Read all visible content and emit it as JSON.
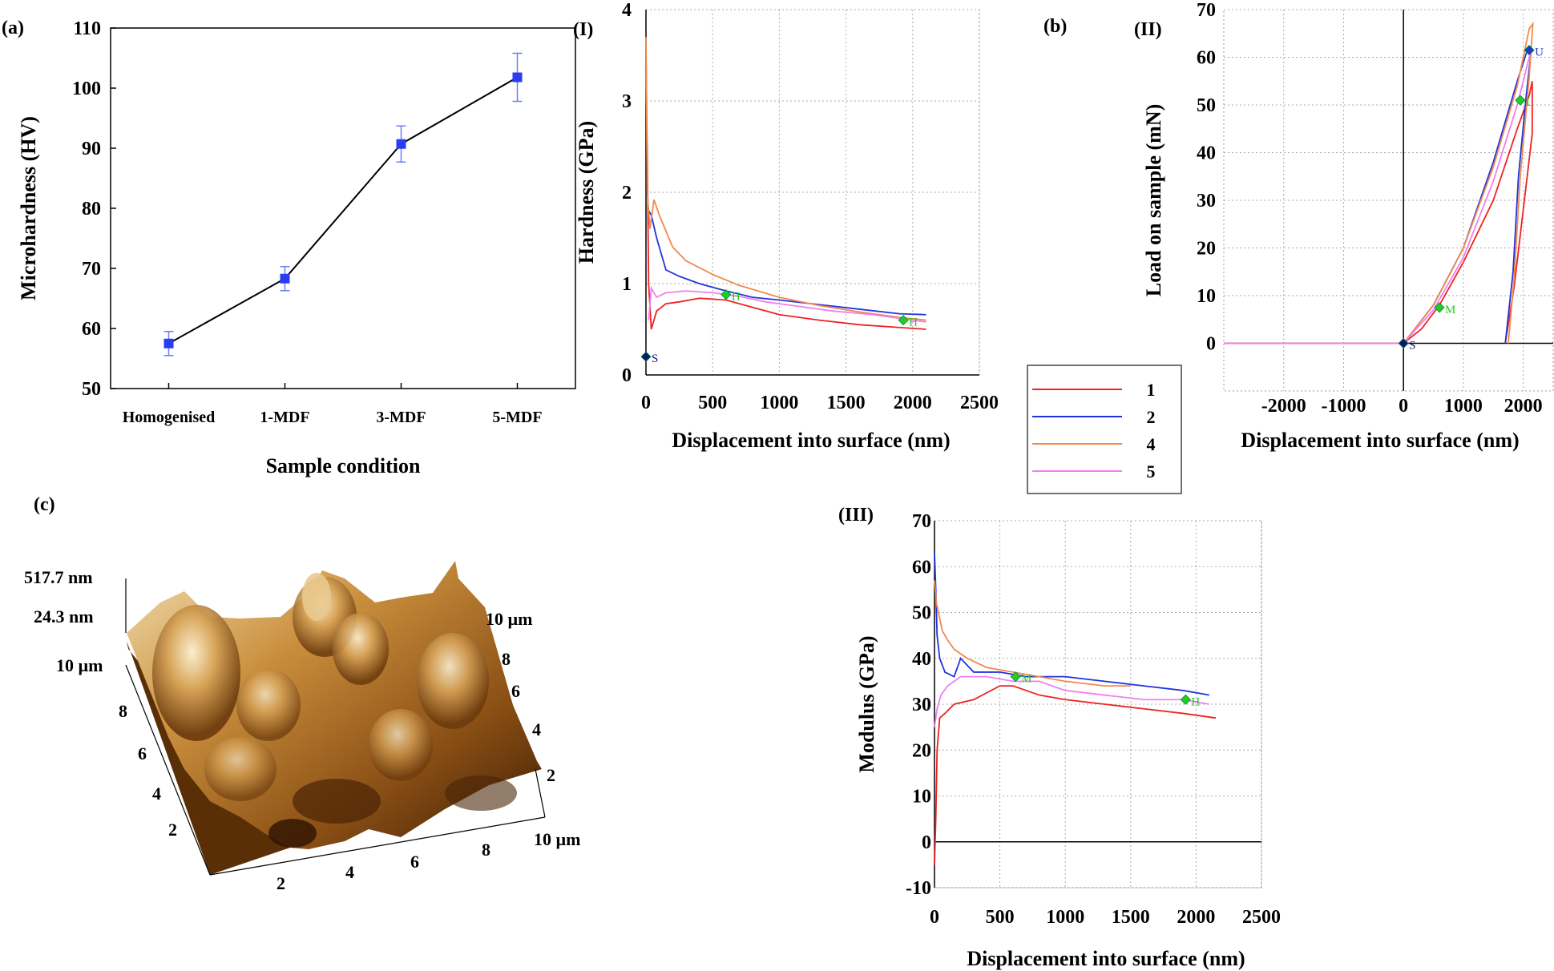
{
  "panel_labels": {
    "a": "(a)",
    "b": "(b)",
    "c": "(c)",
    "I": "(I)",
    "II": "(II)",
    "III": "(III)"
  },
  "colors": {
    "s1": "#ee2222",
    "s2": "#2233dd",
    "s4": "#f08a4b",
    "s5": "#f07ff0",
    "marker_a": "#2a3df0"
  },
  "legend": {
    "items": [
      {
        "name": "1",
        "color": "#ee2222"
      },
      {
        "name": "2",
        "color": "#2233dd"
      },
      {
        "name": "4",
        "color": "#f08a4b"
      },
      {
        "name": "5",
        "color": "#f07ff0"
      }
    ]
  },
  "afm": {
    "z_max": "517.7 nm",
    "z_min": "24.3 nm",
    "y_axis_label": "10 µm",
    "y_ticks": [
      "8",
      "6",
      "4",
      "2"
    ],
    "x_ticks": [
      "2",
      "4",
      "6",
      "8"
    ],
    "x_axis_label": "10 µm",
    "r_axis_label": "10 µm",
    "r_ticks": [
      "8",
      "6",
      "4",
      "2"
    ]
  },
  "chart_data": [
    {
      "id": "a",
      "type": "line",
      "xlabel": "Sample condition",
      "ylabel": "Microhardness (HV)",
      "categories": [
        "Homogenised",
        "1-MDF",
        "3-MDF",
        "5-MDF"
      ],
      "values": [
        57.5,
        68.3,
        90.7,
        101.8
      ],
      "errors": [
        2.0,
        2.0,
        3.0,
        4.0
      ],
      "ylim": [
        50,
        110
      ],
      "yticks": [
        50,
        60,
        70,
        80,
        90,
        100,
        110
      ],
      "grid": false
    },
    {
      "id": "I",
      "type": "line",
      "xlabel": "Displacement into surface (nm)",
      "ylabel": "Hardness (GPa)",
      "xlim": [
        0,
        2500
      ],
      "ylim": [
        0,
        4
      ],
      "xticks": [
        0,
        500,
        1000,
        1500,
        2000,
        2500
      ],
      "yticks": [
        0,
        1,
        2,
        3,
        4
      ],
      "grid": true,
      "series": [
        {
          "name": "1",
          "x": [
            0,
            10,
            20,
            40,
            80,
            150,
            250,
            400,
            600,
            800,
            1000,
            1300,
            1600,
            1900,
            2100
          ],
          "y": [
            3.5,
            2.4,
            1.0,
            0.5,
            0.7,
            0.78,
            0.8,
            0.84,
            0.82,
            0.74,
            0.66,
            0.6,
            0.55,
            0.52,
            0.5
          ]
        },
        {
          "name": "2",
          "x": [
            20,
            40,
            80,
            150,
            250,
            400,
            600,
            800,
            1000,
            1300,
            1600,
            1900,
            2100
          ],
          "y": [
            1.8,
            1.75,
            1.5,
            1.15,
            1.08,
            1.0,
            0.92,
            0.85,
            0.82,
            0.77,
            0.72,
            0.67,
            0.66
          ]
        },
        {
          "name": "4",
          "x": [
            0,
            10,
            30,
            60,
            100,
            200,
            300,
            500,
            700,
            1000,
            1300,
            1600,
            1900,
            2100
          ],
          "y": [
            3.7,
            2.0,
            1.6,
            1.92,
            1.75,
            1.4,
            1.25,
            1.1,
            0.98,
            0.85,
            0.76,
            0.69,
            0.63,
            0.6
          ]
        },
        {
          "name": "5",
          "x": [
            20,
            40,
            80,
            150,
            300,
            500,
            700,
            900,
            1100,
            1400,
            1700,
            2000,
            2100
          ],
          "y": [
            0.6,
            0.95,
            0.85,
            0.9,
            0.92,
            0.9,
            0.86,
            0.8,
            0.76,
            0.7,
            0.66,
            0.6,
            0.58
          ]
        }
      ],
      "markers": [
        {
          "label": "S",
          "x": 0,
          "y": 0.2,
          "color": "#0a1a6a"
        },
        {
          "label": "H",
          "x": 600,
          "y": 0.88,
          "color": "#22cc22"
        },
        {
          "label": "H",
          "x": 1930,
          "y": 0.6,
          "color": "#22cc22"
        }
      ]
    },
    {
      "id": "II",
      "type": "line",
      "xlabel": "Displacement into surface (nm)",
      "ylabel": "Load on sample (mN)",
      "xlim": [
        -3000,
        2500
      ],
      "ylim": [
        -10,
        70
      ],
      "xticks": [
        -2000,
        -1000,
        0,
        1000,
        2000
      ],
      "yticks": [
        0,
        10,
        20,
        30,
        40,
        50,
        60,
        70
      ],
      "grid": true,
      "series": [
        {
          "name": "1",
          "x": [
            -3000,
            0,
            300,
            600,
            1000,
            1500,
            1900,
            2100,
            2150,
            2150,
            2000,
            1850,
            1700
          ],
          "y": [
            0,
            0,
            3,
            8,
            17,
            30,
            45,
            52,
            55,
            44,
            28,
            12,
            0
          ]
        },
        {
          "name": "2",
          "x": [
            0,
            500,
            1000,
            1500,
            1900,
            2080,
            2130,
            2050,
            1920,
            1830,
            1700
          ],
          "y": [
            0,
            8,
            20,
            38,
            55,
            62,
            61,
            52,
            35,
            15,
            0
          ]
        },
        {
          "name": "4",
          "x": [
            0,
            500,
            1000,
            1500,
            1900,
            2100,
            2160,
            2100,
            1950,
            1850,
            1750
          ],
          "y": [
            0,
            8,
            20,
            37,
            54,
            66,
            67,
            56,
            35,
            14,
            0
          ]
        },
        {
          "name": "5",
          "x": [
            -3000,
            0,
            500,
            1000,
            1500,
            1900,
            2100,
            2150
          ],
          "y": [
            0,
            0,
            7,
            18,
            34,
            50,
            60,
            62
          ]
        }
      ],
      "markers": [
        {
          "label": "S",
          "x": 0,
          "y": 0,
          "color": "#0a1a6a"
        },
        {
          "label": "M",
          "x": 600,
          "y": 7.5,
          "color": "#22cc22"
        },
        {
          "label": "L",
          "x": 1950,
          "y": 51,
          "color": "#22cc22"
        },
        {
          "label": "U",
          "x": 2100,
          "y": 61.5,
          "color": "#1a3acc"
        }
      ]
    },
    {
      "id": "III",
      "type": "line",
      "xlabel": "Displacement into surface (nm)",
      "ylabel": "Modulus (GPa)",
      "xlim": [
        0,
        2500
      ],
      "ylim": [
        -10,
        70
      ],
      "xticks": [
        0,
        500,
        1000,
        1500,
        2000,
        2500
      ],
      "yticks": [
        -10,
        0,
        10,
        20,
        30,
        40,
        50,
        60,
        70
      ],
      "grid": true,
      "series": [
        {
          "name": "1",
          "x": [
            0,
            10,
            20,
            40,
            80,
            150,
            300,
            500,
            600,
            800,
            1000,
            1300,
            1600,
            1900,
            2150
          ],
          "y": [
            -5,
            5,
            20,
            27,
            28,
            30,
            31,
            34,
            34,
            32,
            31,
            30,
            29,
            28,
            27
          ]
        },
        {
          "name": "2",
          "x": [
            0,
            10,
            20,
            40,
            80,
            150,
            200,
            300,
            500,
            700,
            1000,
            1300,
            1600,
            1900,
            2100
          ],
          "y": [
            63,
            55,
            45,
            40,
            37,
            36,
            40,
            37,
            37,
            36,
            36,
            35,
            34,
            33,
            32
          ]
        },
        {
          "name": "4",
          "x": [
            0,
            15,
            30,
            60,
            100,
            150,
            250,
            400,
            600,
            800,
            1000,
            1300,
            1500
          ],
          "y": [
            57,
            52,
            50,
            46,
            44,
            42,
            40,
            38,
            37,
            36,
            35,
            34,
            34
          ]
        },
        {
          "name": "5",
          "x": [
            0,
            20,
            50,
            100,
            200,
            400,
            600,
            800,
            1000,
            1300,
            1600,
            1900,
            2100
          ],
          "y": [
            25,
            29,
            32,
            34,
            36,
            36,
            35,
            35,
            33,
            32,
            31,
            31,
            30
          ]
        }
      ],
      "markers": [
        {
          "label": "M",
          "x": 620,
          "y": 36,
          "color": "#22cc22"
        },
        {
          "label": "H",
          "x": 1920,
          "y": 31,
          "color": "#22cc22"
        }
      ]
    }
  ]
}
